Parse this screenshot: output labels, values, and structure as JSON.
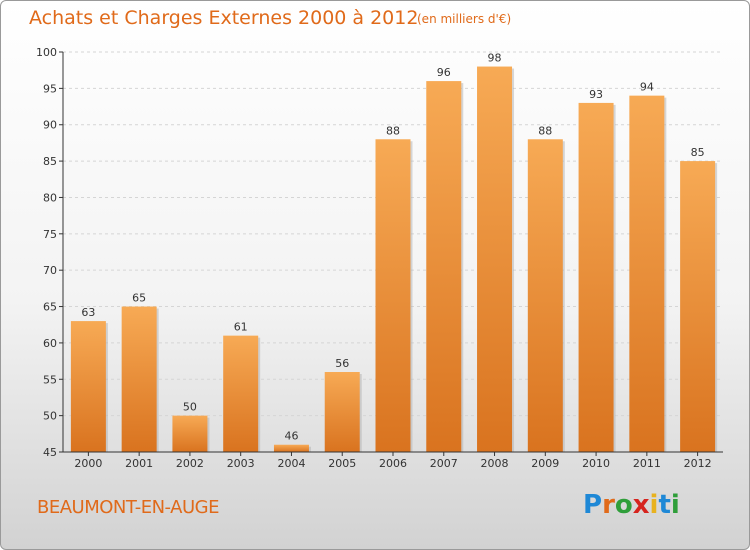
{
  "title": "Achats et Charges Externes 2000 à 2012",
  "subtitle": "(en milliers d'€)",
  "location": "BEAUMONT-EN-AUGE",
  "brand": {
    "letters": [
      "P",
      "r",
      "o",
      "x",
      "i",
      "t",
      "i"
    ],
    "colors": [
      "#1e88d6",
      "#e06a1a",
      "#2f9e3a",
      "#d6241e",
      "#e8b21e",
      "#1e88d6",
      "#2f9e3a"
    ]
  },
  "colors": {
    "bar": "#f0913a",
    "bar_light": "#f7aa55",
    "bar_dark": "#d9731f",
    "text": "#e06a1a",
    "axis": "#333333"
  },
  "chart_data": {
    "type": "bar",
    "categories": [
      "2000",
      "2001",
      "2002",
      "2003",
      "2004",
      "2005",
      "2006",
      "2007",
      "2008",
      "2009",
      "2010",
      "2011",
      "2012"
    ],
    "values": [
      63,
      65,
      50,
      61,
      46,
      56,
      88,
      96,
      98,
      88,
      93,
      94,
      85
    ],
    "ylim": [
      45,
      100
    ],
    "yticks": [
      45,
      50,
      55,
      60,
      65,
      70,
      75,
      80,
      85,
      90,
      95,
      100
    ],
    "grid": true
  }
}
